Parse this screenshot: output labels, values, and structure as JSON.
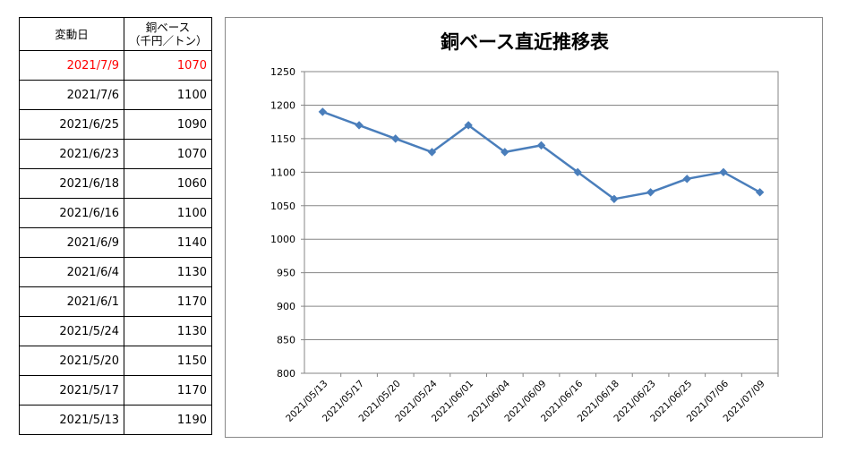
{
  "table": {
    "header": {
      "date": "変動日",
      "price_line1": "銅ベース",
      "price_line2": "（千円／トン）"
    },
    "rows": [
      {
        "date": "2021/7/9",
        "price": "1070",
        "highlight": true
      },
      {
        "date": "2021/7/6",
        "price": "1100"
      },
      {
        "date": "2021/6/25",
        "price": "1090"
      },
      {
        "date": "2021/6/23",
        "price": "1070"
      },
      {
        "date": "2021/6/18",
        "price": "1060"
      },
      {
        "date": "2021/6/16",
        "price": "1100"
      },
      {
        "date": "2021/6/9",
        "price": "1140"
      },
      {
        "date": "2021/6/4",
        "price": "1130"
      },
      {
        "date": "2021/6/1",
        "price": "1170"
      },
      {
        "date": "2021/5/24",
        "price": "1130"
      },
      {
        "date": "2021/5/20",
        "price": "1150"
      },
      {
        "date": "2021/5/17",
        "price": "1170"
      },
      {
        "date": "2021/5/13",
        "price": "1190"
      }
    ]
  },
  "colors": {
    "highlight": "#ff0000",
    "line": "#4a7ebb",
    "grid": "#868686"
  },
  "chart_data": {
    "type": "line",
    "title": "銅ベース直近推移表",
    "categories": [
      "2021/05/13",
      "2021/05/17",
      "2021/05/20",
      "2021/05/24",
      "2021/06/01",
      "2021/06/04",
      "2021/06/09",
      "2021/06/16",
      "2021/06/18",
      "2021/06/23",
      "2021/06/25",
      "2021/07/06",
      "2021/07/09"
    ],
    "values": [
      1190,
      1170,
      1150,
      1130,
      1170,
      1130,
      1140,
      1100,
      1060,
      1070,
      1090,
      1100,
      1070
    ],
    "yticks": [
      800,
      850,
      900,
      950,
      1000,
      1050,
      1100,
      1150,
      1200,
      1250
    ],
    "ylim": [
      800,
      1250
    ],
    "marker": "diamond",
    "grid": true,
    "legend": "none"
  }
}
